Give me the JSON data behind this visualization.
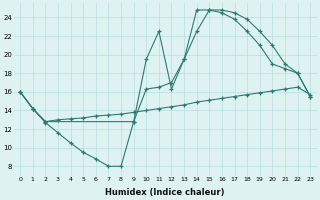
{
  "background_color": "#dff2f2",
  "grid_color": "#b8dede",
  "line_color": "#2d7a6e",
  "xlabel": "Humidex (Indice chaleur)",
  "xlim": [
    -0.5,
    23.5
  ],
  "ylim": [
    7,
    25.5
  ],
  "yticks": [
    8,
    10,
    12,
    14,
    16,
    18,
    20,
    22,
    24
  ],
  "xticks": [
    0,
    1,
    2,
    3,
    4,
    5,
    6,
    7,
    8,
    9,
    10,
    11,
    12,
    13,
    14,
    15,
    16,
    17,
    18,
    19,
    20,
    21,
    22,
    23
  ],
  "curve1_x": [
    0,
    1,
    2,
    3,
    4,
    5,
    6,
    7,
    8,
    9,
    10,
    11,
    12,
    13,
    14,
    15,
    16,
    17,
    18,
    19,
    20,
    21,
    22,
    23
  ],
  "curve1_y": [
    16.0,
    14.2,
    12.7,
    11.6,
    10.5,
    9.5,
    8.8,
    8.0,
    8.0,
    12.8,
    19.5,
    22.5,
    16.3,
    19.5,
    24.8,
    24.8,
    24.5,
    23.8,
    22.5,
    21.0,
    19.0,
    18.5,
    18.0,
    15.5
  ],
  "curve2_x": [
    0,
    1,
    2,
    3,
    4,
    5,
    6,
    7,
    8,
    9,
    10,
    11,
    12,
    13,
    14,
    15,
    16,
    17,
    18,
    19,
    20,
    21,
    22,
    23
  ],
  "curve2_y": [
    16.0,
    14.2,
    12.8,
    13.0,
    13.1,
    13.2,
    13.4,
    13.5,
    13.6,
    13.8,
    14.0,
    14.2,
    14.4,
    14.6,
    14.9,
    15.1,
    15.3,
    15.5,
    15.7,
    15.9,
    16.1,
    16.3,
    16.5,
    15.7
  ],
  "curve3_x": [
    0,
    1,
    2,
    9,
    10,
    11,
    12,
    13,
    14,
    15,
    16,
    17,
    18,
    19,
    20,
    21,
    22,
    23
  ],
  "curve3_y": [
    16.0,
    14.2,
    12.8,
    12.8,
    16.3,
    16.5,
    17.0,
    19.5,
    22.5,
    24.8,
    24.8,
    24.5,
    23.8,
    22.5,
    21.0,
    19.0,
    18.0,
    15.5
  ]
}
